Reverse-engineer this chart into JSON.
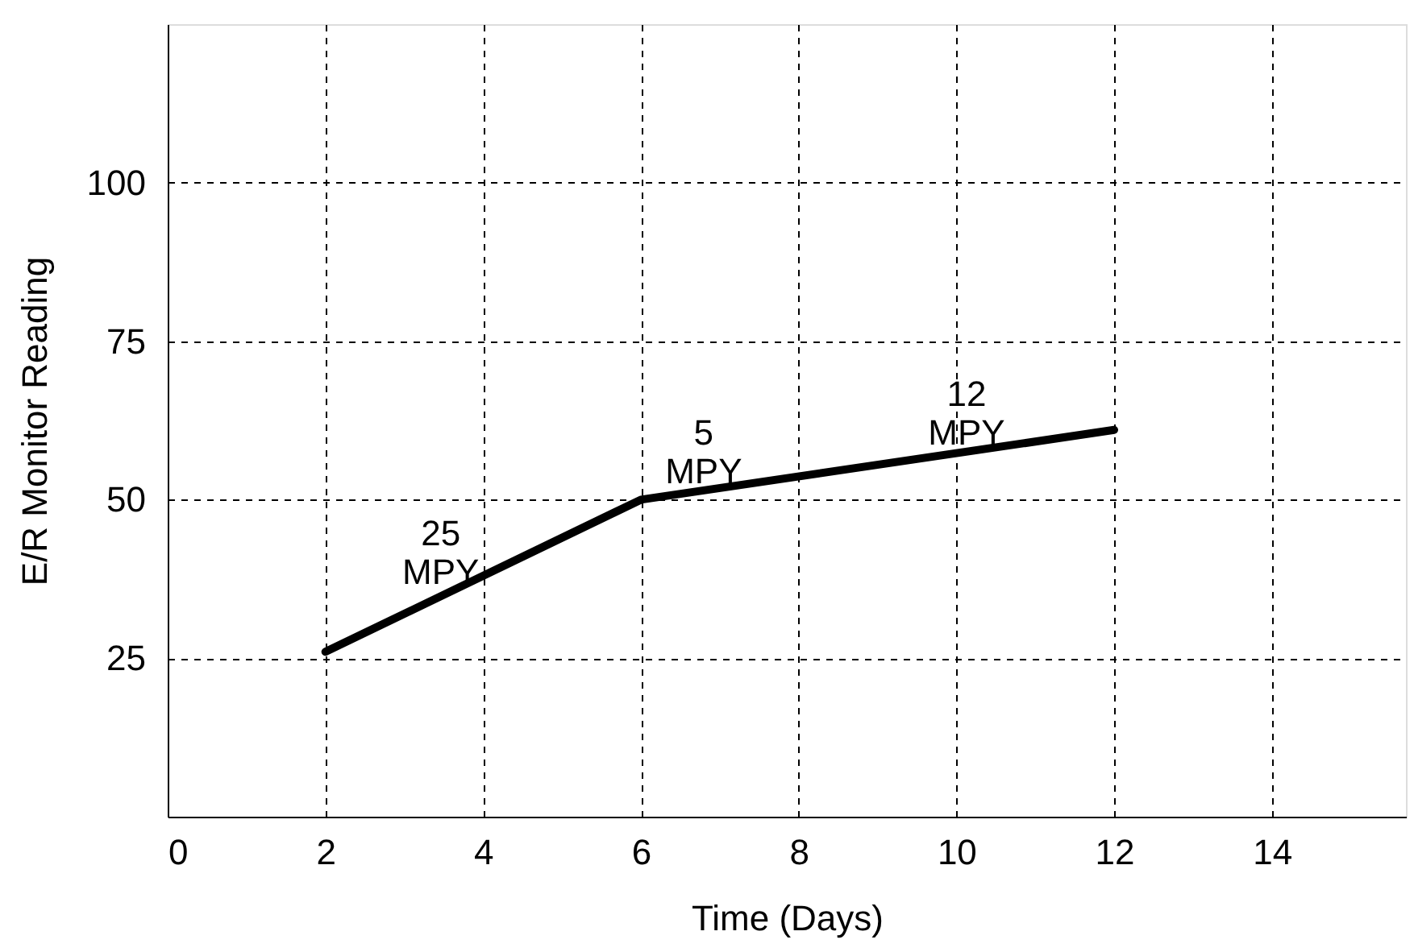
{
  "chart_data": {
    "type": "line",
    "xlabel": "Time (Days)",
    "ylabel": "E/R Monitor Reading",
    "x": [
      2,
      6,
      12
    ],
    "series": [
      {
        "color": "#000000",
        "values": [
          26,
          50,
          61
        ]
      }
    ],
    "xlim": [
      0,
      15.7
    ],
    "xticks": [
      0,
      2,
      4,
      6,
      8,
      10,
      12,
      14
    ],
    "ylim": [
      0,
      125
    ],
    "yticks": [
      25,
      50,
      75,
      100
    ],
    "grid": true,
    "marker": "none",
    "line_style": "solid",
    "annotations": [
      "25\nMPY",
      "5\nMPY",
      "12\nMPY"
    ]
  }
}
